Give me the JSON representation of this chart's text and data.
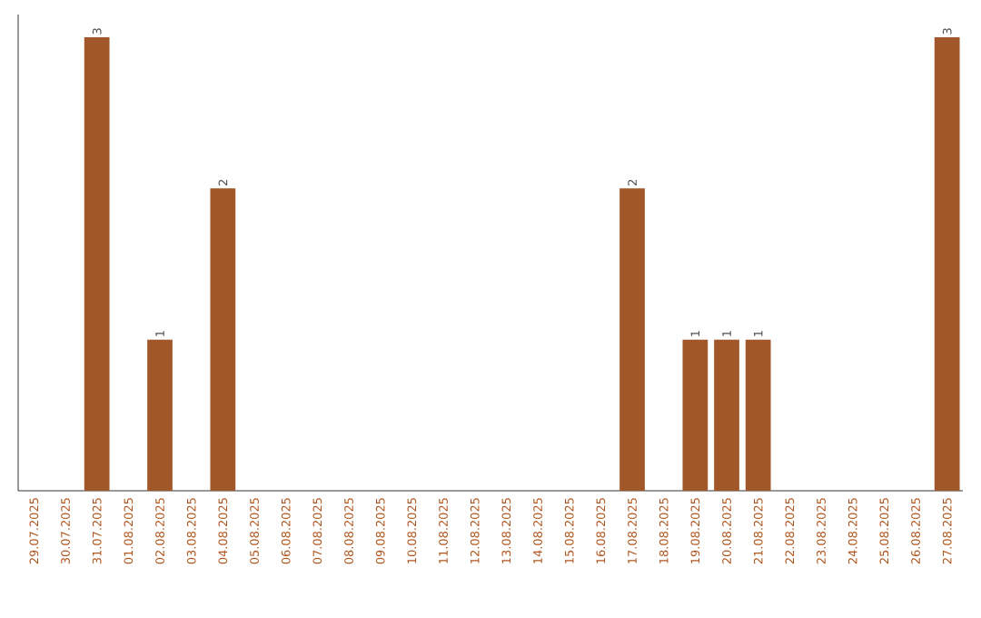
{
  "chart_data": {
    "type": "bar",
    "color": "#a0572a",
    "categories": [
      "29.07.2025",
      "30.07.2025",
      "31.07.2025",
      "01.08.2025",
      "02.08.2025",
      "03.08.2025",
      "04.08.2025",
      "05.08.2025",
      "06.08.2025",
      "07.08.2025",
      "08.08.2025",
      "09.08.2025",
      "10.08.2025",
      "11.08.2025",
      "12.08.2025",
      "13.08.2025",
      "14.08.2025",
      "15.08.2025",
      "16.08.2025",
      "17.08.2025",
      "18.08.2025",
      "19.08.2025",
      "20.08.2025",
      "21.08.2025",
      "22.08.2025",
      "23.08.2025",
      "24.08.2025",
      "25.08.2025",
      "26.08.2025",
      "27.08.2025"
    ],
    "values": [
      0,
      0,
      3,
      0,
      1,
      0,
      2,
      0,
      0,
      0,
      0,
      0,
      0,
      0,
      0,
      0,
      0,
      0,
      0,
      2,
      0,
      1,
      1,
      1,
      0,
      0,
      0,
      0,
      0,
      3
    ],
    "value_labels": [
      null,
      null,
      "3",
      null,
      "1",
      null,
      "2",
      null,
      null,
      null,
      null,
      null,
      null,
      null,
      null,
      null,
      null,
      null,
      null,
      "2",
      null,
      "1",
      "1",
      "1",
      null,
      null,
      null,
      null,
      null,
      "3"
    ]
  }
}
